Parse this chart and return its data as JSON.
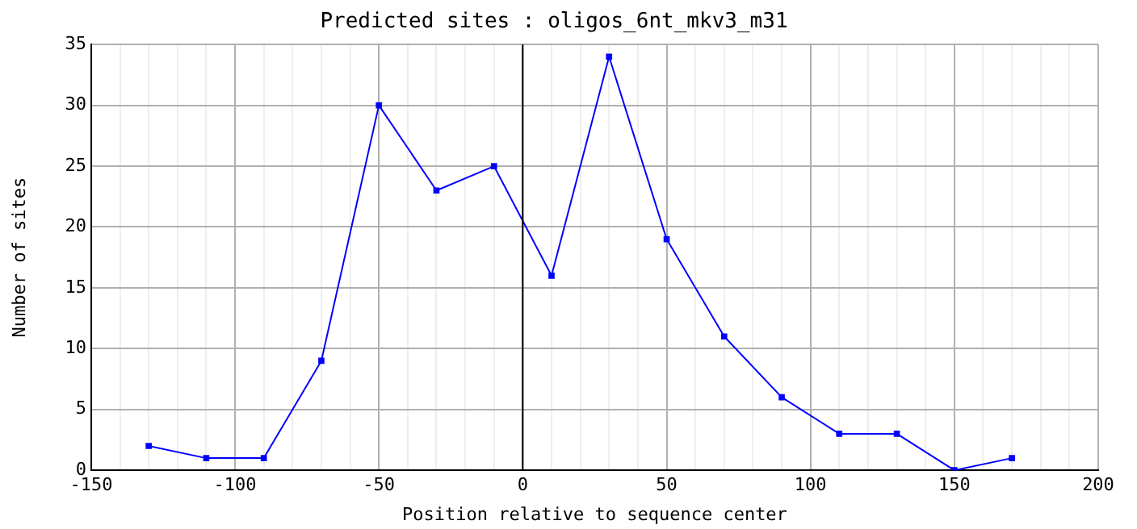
{
  "chart_data": {
    "type": "line",
    "title": "Predicted sites : oligos_6nt_mkv3_m31",
    "xlabel": "Position relative to sequence center",
    "ylabel": "Number of sites",
    "x": [
      -130,
      -110,
      -90,
      -70,
      -50,
      -30,
      -10,
      10,
      30,
      50,
      70,
      90,
      110,
      130,
      150,
      170
    ],
    "series": [
      {
        "color": "#0000ff",
        "values": [
          2,
          1,
          1,
          9,
          30,
          23,
          25,
          16,
          34,
          19,
          11,
          6,
          3,
          3,
          0,
          1
        ]
      }
    ],
    "xlim": [
      -150,
      200
    ],
    "xticks": [
      -150,
      {
        "value": -140,
        "label": null
      },
      {
        "value": -130,
        "label": null
      },
      {
        "value": -120,
        "label": null
      },
      {
        "value": -110,
        "label": null
      },
      -100,
      {
        "value": -90,
        "label": null
      },
      {
        "value": -80,
        "label": null
      },
      {
        "value": -70,
        "label": null
      },
      {
        "value": -60,
        "label": null
      },
      -50,
      {
        "value": -40,
        "label": null
      },
      {
        "value": -30,
        "label": null
      },
      {
        "value": -20,
        "label": null
      },
      {
        "value": -10,
        "label": null
      },
      0,
      {
        "value": 10,
        "label": null
      },
      {
        "value": 20,
        "label": null
      },
      {
        "value": 30,
        "label": null
      },
      {
        "value": 40,
        "label": null
      },
      50,
      {
        "value": 60,
        "label": null
      },
      {
        "value": 70,
        "label": null
      },
      {
        "value": 80,
        "label": null
      },
      {
        "value": 90,
        "label": null
      },
      100,
      {
        "value": 110,
        "label": null
      },
      {
        "value": 120,
        "label": null
      },
      {
        "value": 130,
        "label": null
      },
      {
        "value": 140,
        "label": null
      },
      150,
      {
        "value": 160,
        "label": null
      },
      {
        "value": 170,
        "label": null
      },
      {
        "value": 180,
        "label": null
      },
      {
        "value": 190,
        "label": null
      },
      200
    ],
    "ylim": [
      0,
      35
    ],
    "yticks": [
      0,
      5,
      10,
      15,
      20,
      25,
      30,
      35
    ],
    "ref_lines": [
      {
        "axis": "x",
        "value": 0,
        "color": "#000000"
      }
    ],
    "grid": true,
    "legend": false,
    "marker": "square",
    "line_style": "solid"
  }
}
